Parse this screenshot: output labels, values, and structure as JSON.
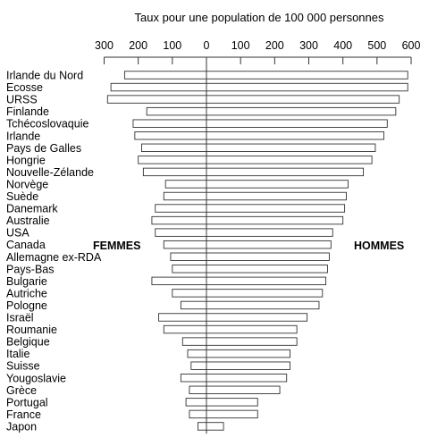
{
  "chart_data": {
    "type": "bar",
    "title": "Taux pour une population de 100 000 personnes",
    "left_label": "FEMMES",
    "right_label": "HOMMES",
    "xticks": {
      "femmes": [
        300,
        200,
        100,
        0
      ],
      "hommes": [
        100,
        200,
        300,
        400,
        500,
        600
      ]
    },
    "xlim_femmes": [
      0,
      300
    ],
    "xlim_hommes": [
      0,
      600
    ],
    "categories": [
      "Irlande du Nord",
      "Ecosse",
      "URSS",
      "Finlande",
      "Tchécoslovaquie",
      "Irlande",
      "Pays de Galles",
      "Hongrie",
      "Nouvelle-Zélande",
      "Norvège",
      "Suède",
      "Danemark",
      "Australie",
      "USA",
      "Canada",
      "Allemagne ex-RDA",
      "Pays-Bas",
      "Bulgarie",
      "Autriche",
      "Pologne",
      "Israël",
      "Roumanie",
      "Belgique",
      "Italie",
      "Suisse",
      "Yougoslavie",
      "Grèce",
      "Portugal",
      "France",
      "Japon"
    ],
    "series": [
      {
        "name": "FEMMES",
        "values": [
          240,
          280,
          290,
          175,
          215,
          210,
          190,
          200,
          185,
          120,
          125,
          150,
          160,
          150,
          125,
          105,
          100,
          160,
          100,
          75,
          140,
          125,
          70,
          55,
          45,
          75,
          50,
          60,
          50,
          25
        ]
      },
      {
        "name": "HOMMES",
        "values": [
          590,
          590,
          565,
          555,
          530,
          520,
          495,
          485,
          460,
          415,
          410,
          405,
          400,
          370,
          365,
          360,
          355,
          350,
          340,
          330,
          295,
          265,
          265,
          245,
          245,
          235,
          215,
          150,
          150,
          50
        ]
      }
    ]
  }
}
